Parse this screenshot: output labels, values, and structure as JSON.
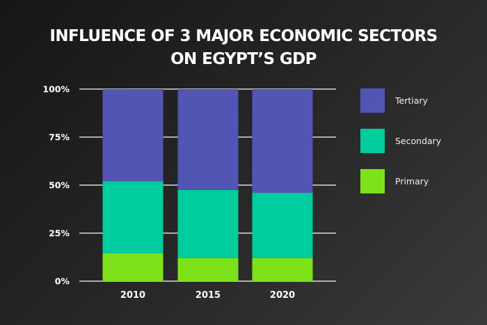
{
  "chart_data": {
    "type": "stacked-bar",
    "title": "INFLUENCE OF 3 MAJOR ECONOMIC SECTORS",
    "subtitle": "ON EGYPT’S GDP",
    "categories": [
      "2010",
      "2015",
      "2020"
    ],
    "series": [
      {
        "name": "Primary",
        "color": "#7ee21b",
        "values": [
          14.5,
          12,
          12
        ]
      },
      {
        "name": "Secondary",
        "color": "#00cc9d",
        "values": [
          37.5,
          35.5,
          34
        ]
      },
      {
        "name": "Tertiary",
        "color": "#5255b3",
        "values": [
          48,
          52.5,
          54
        ]
      }
    ],
    "yticks": [
      "0%",
      "25%",
      "50%",
      "75%",
      "100%"
    ],
    "ylim": [
      0,
      100
    ],
    "legend_position": "right",
    "legend_order": [
      "Tertiary",
      "Secondary",
      "Primary"
    ]
  }
}
